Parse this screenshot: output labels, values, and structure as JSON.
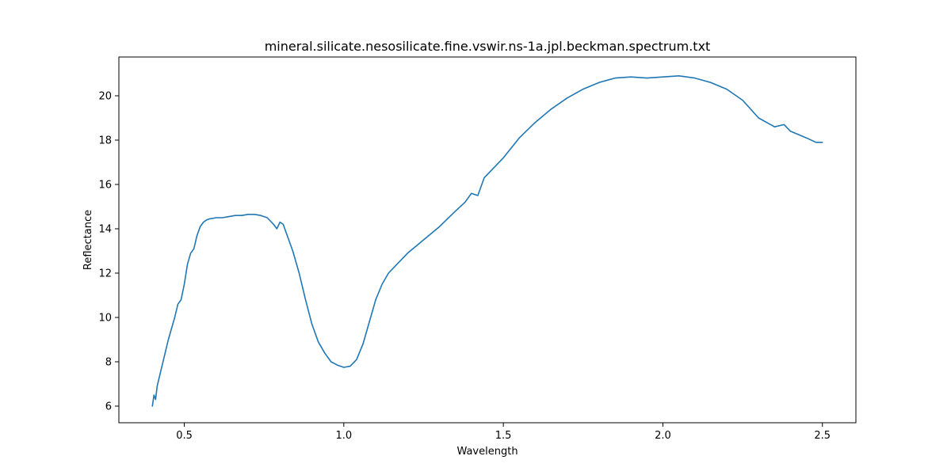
{
  "chart_data": {
    "type": "line",
    "title": "mineral.silicate.nesosilicate.fine.vswir.ns-1a.jpl.beckman.spectrum.txt",
    "xlabel": "Wavelength",
    "ylabel": "Reflectance",
    "xlim": [
      0.295,
      2.605
    ],
    "ylim": [
      5.25,
      21.75
    ],
    "xticks": [
      0.5,
      1.0,
      1.5,
      2.0,
      2.5
    ],
    "xtick_labels": [
      "0.5",
      "1.0",
      "1.5",
      "2.0",
      "2.5"
    ],
    "yticks": [
      6,
      8,
      10,
      12,
      14,
      16,
      18,
      20
    ],
    "ytick_labels": [
      "6",
      "8",
      "10",
      "12",
      "14",
      "16",
      "18",
      "20"
    ],
    "grid": false,
    "line_color": "#1f77b4",
    "series": [
      {
        "x": [
          0.4,
          0.405,
          0.41,
          0.415,
          0.42,
          0.43,
          0.44,
          0.45,
          0.46,
          0.47,
          0.48,
          0.49,
          0.5,
          0.51,
          0.52,
          0.53,
          0.54,
          0.55,
          0.56,
          0.57,
          0.58,
          0.6,
          0.62,
          0.64,
          0.66,
          0.68,
          0.7,
          0.72,
          0.74,
          0.76,
          0.78,
          0.79,
          0.8,
          0.81,
          0.82,
          0.84,
          0.86,
          0.88,
          0.9,
          0.92,
          0.94,
          0.96,
          0.98,
          1.0,
          1.02,
          1.04,
          1.06,
          1.08,
          1.1,
          1.12,
          1.14,
          1.16,
          1.2,
          1.25,
          1.3,
          1.35,
          1.38,
          1.4,
          1.42,
          1.44,
          1.5,
          1.55,
          1.6,
          1.65,
          1.7,
          1.75,
          1.8,
          1.85,
          1.9,
          1.95,
          2.0,
          2.05,
          2.1,
          2.15,
          2.2,
          2.25,
          2.3,
          2.35,
          2.38,
          2.4,
          2.45,
          2.48,
          2.5
        ],
        "y": [
          6.0,
          6.5,
          6.3,
          6.9,
          7.2,
          7.8,
          8.4,
          9.0,
          9.5,
          10.0,
          10.6,
          10.8,
          11.5,
          12.4,
          12.9,
          13.1,
          13.7,
          14.1,
          14.3,
          14.4,
          14.45,
          14.5,
          14.5,
          14.55,
          14.6,
          14.6,
          14.65,
          14.65,
          14.6,
          14.5,
          14.2,
          14.0,
          14.3,
          14.2,
          13.8,
          13.0,
          12.0,
          10.8,
          9.7,
          8.9,
          8.4,
          8.0,
          7.85,
          7.75,
          7.8,
          8.1,
          8.8,
          9.8,
          10.8,
          11.5,
          12.0,
          12.3,
          12.9,
          13.5,
          14.1,
          14.8,
          15.2,
          15.6,
          15.5,
          16.3,
          17.2,
          18.1,
          18.8,
          19.4,
          19.9,
          20.3,
          20.6,
          20.8,
          20.85,
          20.8,
          20.85,
          20.9,
          20.8,
          20.6,
          20.3,
          19.8,
          19.0,
          18.6,
          18.7,
          18.4,
          18.1,
          17.9,
          17.9
        ]
      }
    ]
  }
}
